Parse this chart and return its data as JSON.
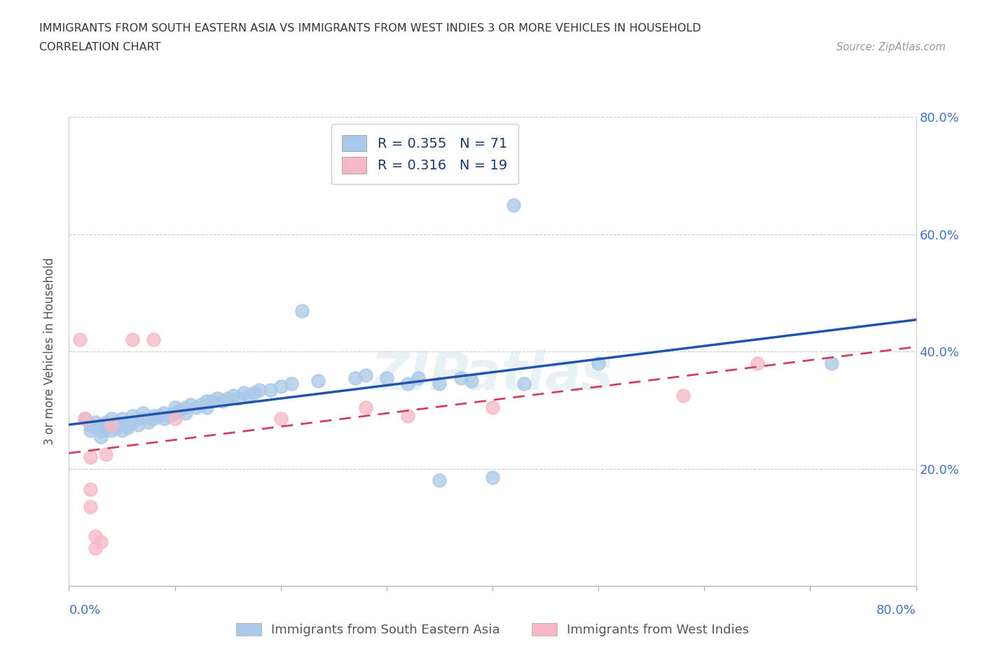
{
  "title_line1": "IMMIGRANTS FROM SOUTH EASTERN ASIA VS IMMIGRANTS FROM WEST INDIES 3 OR MORE VEHICLES IN HOUSEHOLD",
  "title_line2": "CORRELATION CHART",
  "source_text": "Source: ZipAtlas.com",
  "ylabel": "3 or more Vehicles in Household",
  "xlim": [
    0,
    0.8
  ],
  "ylim": [
    0,
    0.8
  ],
  "xtick_vals": [
    0.0,
    0.1,
    0.2,
    0.3,
    0.4,
    0.5,
    0.6,
    0.7,
    0.8
  ],
  "ytick_vals": [
    0.2,
    0.4,
    0.6,
    0.8
  ],
  "ytick_labels": [
    "20.0%",
    "40.0%",
    "60.0%",
    "80.0%"
  ],
  "x_corner_labels": [
    "0.0%",
    "80.0%"
  ],
  "blue_R": 0.355,
  "blue_N": 71,
  "pink_R": 0.316,
  "pink_N": 19,
  "blue_circle_color": "#aac8e8",
  "pink_circle_color": "#f5b8c8",
  "blue_line_color": "#2255aa",
  "pink_line_color": "#d04060",
  "blue_scatter": [
    [
      0.015,
      0.285
    ],
    [
      0.02,
      0.275
    ],
    [
      0.02,
      0.265
    ],
    [
      0.025,
      0.27
    ],
    [
      0.025,
      0.28
    ],
    [
      0.03,
      0.265
    ],
    [
      0.03,
      0.275
    ],
    [
      0.03,
      0.255
    ],
    [
      0.035,
      0.28
    ],
    [
      0.035,
      0.27
    ],
    [
      0.04,
      0.265
    ],
    [
      0.04,
      0.275
    ],
    [
      0.04,
      0.285
    ],
    [
      0.045,
      0.27
    ],
    [
      0.045,
      0.28
    ],
    [
      0.05,
      0.265
    ],
    [
      0.05,
      0.275
    ],
    [
      0.05,
      0.285
    ],
    [
      0.055,
      0.27
    ],
    [
      0.055,
      0.275
    ],
    [
      0.06,
      0.28
    ],
    [
      0.06,
      0.29
    ],
    [
      0.065,
      0.275
    ],
    [
      0.07,
      0.285
    ],
    [
      0.07,
      0.295
    ],
    [
      0.075,
      0.28
    ],
    [
      0.08,
      0.29
    ],
    [
      0.08,
      0.285
    ],
    [
      0.085,
      0.29
    ],
    [
      0.09,
      0.295
    ],
    [
      0.09,
      0.285
    ],
    [
      0.095,
      0.29
    ],
    [
      0.1,
      0.295
    ],
    [
      0.1,
      0.305
    ],
    [
      0.105,
      0.3
    ],
    [
      0.11,
      0.305
    ],
    [
      0.11,
      0.295
    ],
    [
      0.115,
      0.31
    ],
    [
      0.12,
      0.305
    ],
    [
      0.125,
      0.31
    ],
    [
      0.13,
      0.315
    ],
    [
      0.13,
      0.305
    ],
    [
      0.135,
      0.315
    ],
    [
      0.14,
      0.32
    ],
    [
      0.145,
      0.315
    ],
    [
      0.15,
      0.32
    ],
    [
      0.155,
      0.325
    ],
    [
      0.16,
      0.32
    ],
    [
      0.165,
      0.33
    ],
    [
      0.17,
      0.325
    ],
    [
      0.175,
      0.33
    ],
    [
      0.18,
      0.335
    ],
    [
      0.19,
      0.335
    ],
    [
      0.2,
      0.34
    ],
    [
      0.21,
      0.345
    ],
    [
      0.22,
      0.47
    ],
    [
      0.235,
      0.35
    ],
    [
      0.27,
      0.355
    ],
    [
      0.28,
      0.36
    ],
    [
      0.3,
      0.355
    ],
    [
      0.32,
      0.345
    ],
    [
      0.33,
      0.355
    ],
    [
      0.35,
      0.345
    ],
    [
      0.37,
      0.355
    ],
    [
      0.35,
      0.18
    ],
    [
      0.38,
      0.35
    ],
    [
      0.4,
      0.185
    ],
    [
      0.43,
      0.345
    ],
    [
      0.42,
      0.65
    ],
    [
      0.5,
      0.38
    ],
    [
      0.72,
      0.38
    ]
  ],
  "pink_scatter": [
    [
      0.01,
      0.42
    ],
    [
      0.015,
      0.285
    ],
    [
      0.02,
      0.22
    ],
    [
      0.02,
      0.165
    ],
    [
      0.02,
      0.135
    ],
    [
      0.025,
      0.085
    ],
    [
      0.025,
      0.065
    ],
    [
      0.03,
      0.075
    ],
    [
      0.035,
      0.225
    ],
    [
      0.04,
      0.275
    ],
    [
      0.06,
      0.42
    ],
    [
      0.08,
      0.42
    ],
    [
      0.1,
      0.285
    ],
    [
      0.2,
      0.285
    ],
    [
      0.28,
      0.305
    ],
    [
      0.32,
      0.29
    ],
    [
      0.4,
      0.305
    ],
    [
      0.58,
      0.325
    ],
    [
      0.65,
      0.38
    ]
  ],
  "watermark_text": "ZIPatlas",
  "background_color": "#ffffff",
  "grid_color": "#cccccc",
  "legend_label_blue": "Immigrants from South Eastern Asia",
  "legend_label_pink": "Immigrants from West Indies"
}
